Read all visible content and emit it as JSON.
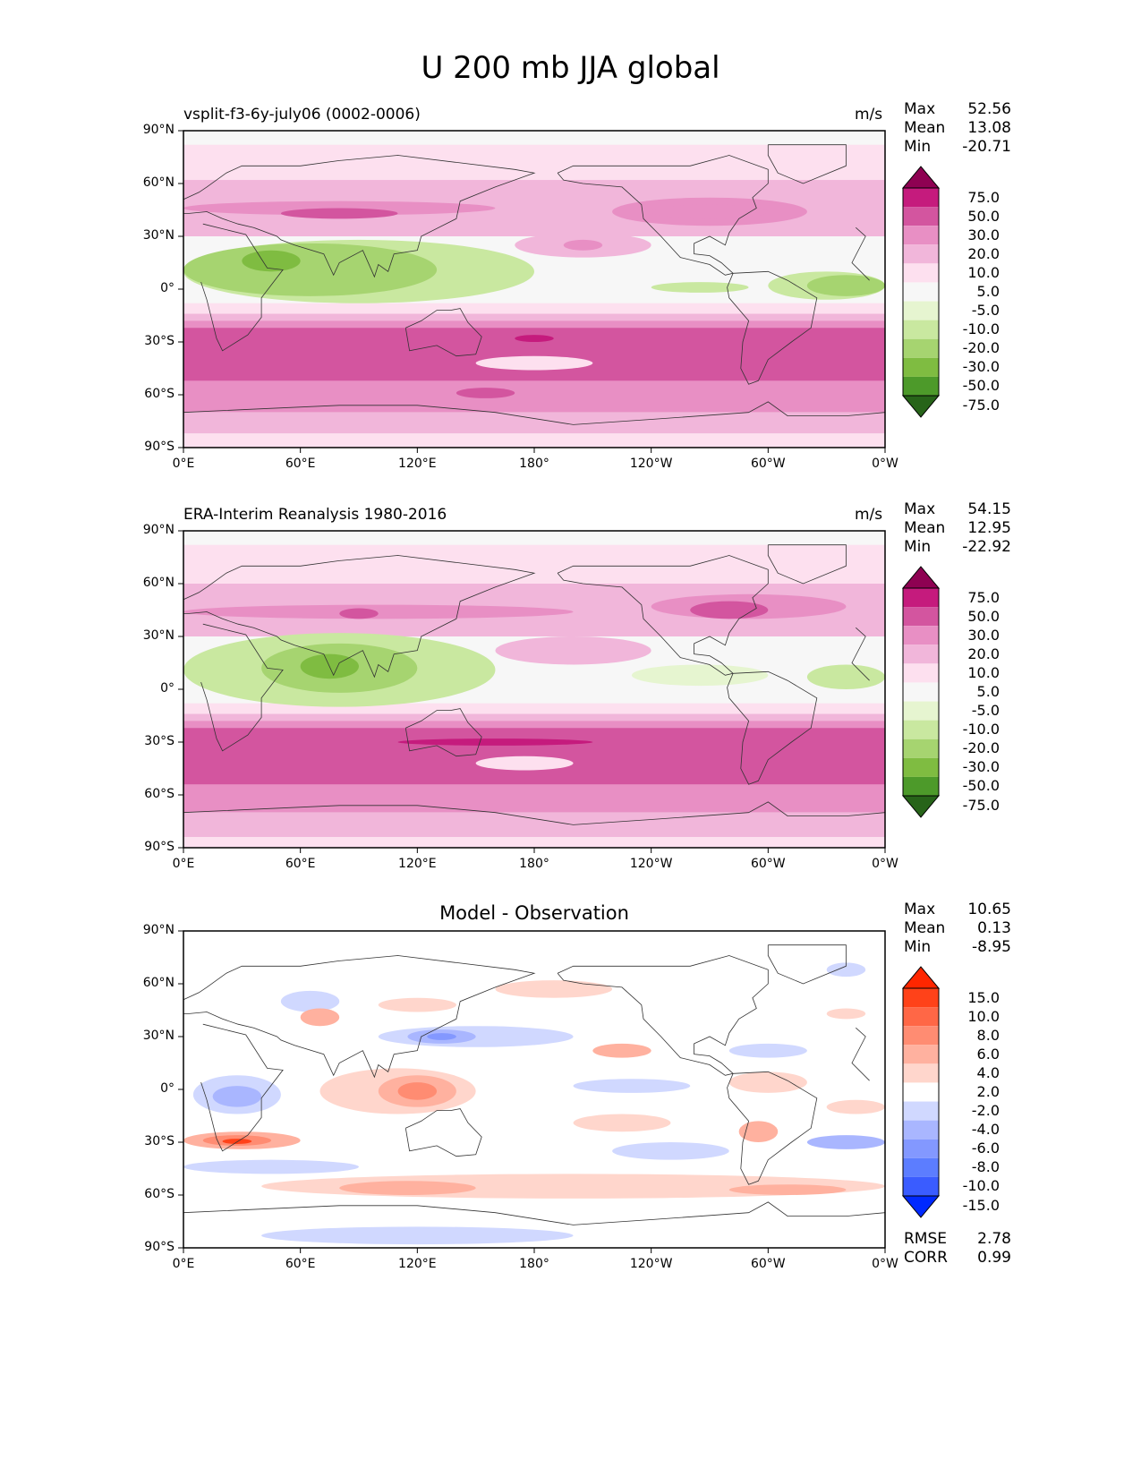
{
  "figure": {
    "title": "U 200 mb JJA global"
  },
  "units": "m/s",
  "colors": {
    "land_outline": "#333333",
    "frame": "#000000",
    "pinkgreen_scale": [
      "#276419",
      "#39861e",
      "#4d9a2a",
      "#7fbc41",
      "#a6d470",
      "#c9e8a0",
      "#e6f5d0",
      "#f7f7f7",
      "#fde0ef",
      "#f1b6da",
      "#e88fc4",
      "#d3559f",
      "#c51b7d",
      "#8e0152"
    ],
    "bluered_scale": [
      "#0029ff",
      "#3a5cff",
      "#5c7dff",
      "#8398ff",
      "#a9b6ff",
      "#d0d8ff",
      "#ffffff",
      "#ffd6cc",
      "#ffb19f",
      "#ff8c72",
      "#ff6746",
      "#ff4219",
      "#ff2600"
    ]
  },
  "axis": {
    "lat_ticks": [
      "90°N",
      "60°N",
      "30°N",
      "0°",
      "30°S",
      "60°S",
      "90°S"
    ],
    "lon_ticks": [
      "0°E",
      "60°E",
      "120°E",
      "180°",
      "120°W",
      "60°W",
      "0°W"
    ]
  },
  "panels": [
    {
      "id": "model",
      "title": "vsplit-f3-6y-july06 (0002-0006)",
      "units": "m/s",
      "stats": {
        "max_label": "Max",
        "max": "52.56",
        "mean_label": "Mean",
        "mean": "13.08",
        "min_label": "Min",
        "min": "-20.71"
      },
      "colorbar_labels": [
        "75.0",
        "50.0",
        "30.0",
        "20.0",
        "10.0",
        "5.0",
        "-5.0",
        "-10.0",
        "-20.0",
        "-30.0",
        "-50.0",
        "-75.0"
      ]
    },
    {
      "id": "obs",
      "title": "ERA-Interim Reanalysis 1980-2016",
      "units": "m/s",
      "stats": {
        "max_label": "Max",
        "max": "54.15",
        "mean_label": "Mean",
        "mean": "12.95",
        "min_label": "Min",
        "min": "-22.92"
      },
      "colorbar_labels": [
        "75.0",
        "50.0",
        "30.0",
        "20.0",
        "10.0",
        "5.0",
        "-5.0",
        "-10.0",
        "-20.0",
        "-30.0",
        "-50.0",
        "-75.0"
      ]
    },
    {
      "id": "diff",
      "title": "Model - Observation",
      "stats": {
        "max_label": "Max",
        "max": "10.65",
        "mean_label": "Mean",
        "mean": "0.13",
        "min_label": "Min",
        "min": "-8.95"
      },
      "extra": {
        "rmse_label": "RMSE",
        "rmse": "2.78",
        "corr_label": "CORR",
        "corr": "0.99"
      },
      "colorbar_labels": [
        "15.0",
        "10.0",
        "8.0",
        "6.0",
        "4.0",
        "2.0",
        "-2.0",
        "-4.0",
        "-6.0",
        "-8.0",
        "-10.0",
        "-15.0"
      ]
    }
  ],
  "chart_data": [
    {
      "type": "heatmap",
      "title": "vsplit-f3-6y-july06 (0002-0006)",
      "variable": "U 200 mb JJA",
      "units": "m/s",
      "x_range": [
        0,
        360
      ],
      "y_range": [
        -90,
        90
      ],
      "levels": [
        -75,
        -50,
        -30,
        -20,
        -10,
        -5,
        5,
        10,
        20,
        30,
        50,
        75
      ],
      "stats": {
        "max": 52.56,
        "mean": 13.08,
        "min": -20.71
      },
      "zonal_profile_approx": [
        {
          "lat": 75,
          "u": 8
        },
        {
          "lat": 60,
          "u": 10
        },
        {
          "lat": 45,
          "u": 22
        },
        {
          "lat": 30,
          "u": 12
        },
        {
          "lat": 15,
          "u": -8
        },
        {
          "lat": 0,
          "u": -4
        },
        {
          "lat": -15,
          "u": 8
        },
        {
          "lat": -30,
          "u": 40
        },
        {
          "lat": -45,
          "u": 35
        },
        {
          "lat": -60,
          "u": 22
        },
        {
          "lat": -75,
          "u": 8
        }
      ]
    },
    {
      "type": "heatmap",
      "title": "ERA-Interim Reanalysis 1980-2016",
      "variable": "U 200 mb JJA",
      "units": "m/s",
      "x_range": [
        0,
        360
      ],
      "y_range": [
        -90,
        90
      ],
      "levels": [
        -75,
        -50,
        -30,
        -20,
        -10,
        -5,
        5,
        10,
        20,
        30,
        50,
        75
      ],
      "stats": {
        "max": 54.15,
        "mean": 12.95,
        "min": -22.92
      },
      "zonal_profile_approx": [
        {
          "lat": 75,
          "u": 6
        },
        {
          "lat": 60,
          "u": 10
        },
        {
          "lat": 45,
          "u": 23
        },
        {
          "lat": 30,
          "u": 13
        },
        {
          "lat": 15,
          "u": -9
        },
        {
          "lat": 0,
          "u": -4
        },
        {
          "lat": -15,
          "u": 9
        },
        {
          "lat": -30,
          "u": 42
        },
        {
          "lat": -45,
          "u": 34
        },
        {
          "lat": -60,
          "u": 20
        },
        {
          "lat": -75,
          "u": 7
        }
      ]
    },
    {
      "type": "heatmap",
      "title": "Model - Observation",
      "variable": "U 200 mb JJA difference",
      "units": "m/s",
      "x_range": [
        0,
        360
      ],
      "y_range": [
        -90,
        90
      ],
      "levels": [
        -15,
        -10,
        -8,
        -6,
        -4,
        -2,
        2,
        4,
        6,
        8,
        10,
        15
      ],
      "stats": {
        "max": 10.65,
        "mean": 0.13,
        "min": -8.95,
        "rmse": 2.78,
        "corr": 0.99
      }
    }
  ]
}
